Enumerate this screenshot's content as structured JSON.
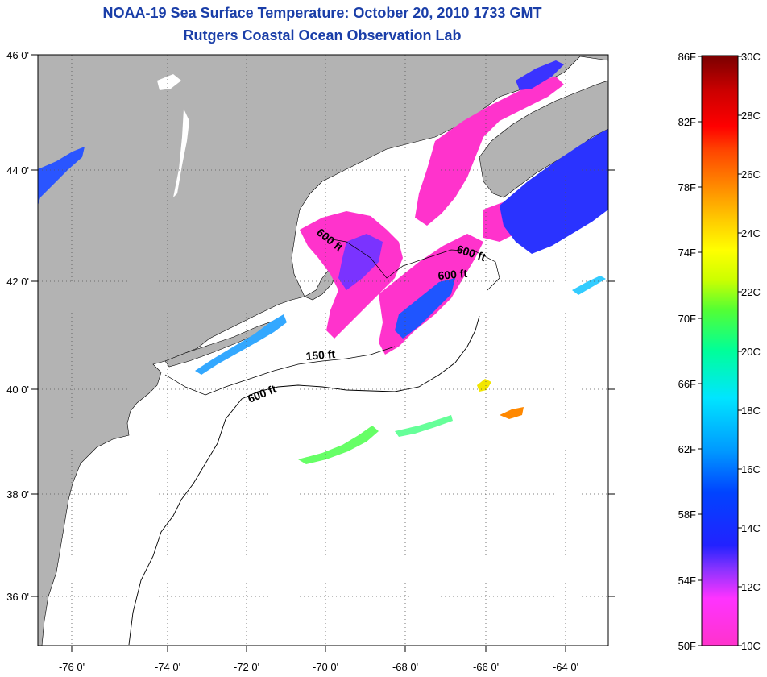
{
  "header": {
    "title": "NOAA-19 Sea Surface Temperature:  October 20, 2010 1733 GMT",
    "subtitle": "Rutgers Coastal Ocean Observation Lab"
  },
  "map": {
    "lon_labels": [
      "-76 0'",
      "-74 0'",
      "-72 0'",
      "-70 0'",
      "-68 0'",
      "-66 0'",
      "-64 0'"
    ],
    "lat_labels": [
      "46 0'",
      "44 0'",
      "42 0'",
      "40 0'",
      "38 0'",
      "36 0'"
    ],
    "isobath_labels": [
      "600 ft",
      "600 ft",
      "600 ft",
      "150 ft",
      "600 ft"
    ],
    "colors": {
      "land": "#b3b3b3",
      "water_cloud": "#ffffff",
      "coastline": "#000000"
    }
  },
  "colorbar": {
    "fahrenheit_labels": [
      "86F",
      "82F",
      "78F",
      "74F",
      "70F",
      "66F",
      "62F",
      "58F",
      "54F",
      "50F"
    ],
    "celsius_labels": [
      "30C",
      "28C",
      "26C",
      "24C",
      "22C",
      "20C",
      "18C",
      "16C",
      "14C",
      "12C",
      "10C"
    ],
    "range_c": [
      10,
      30
    ],
    "range_f": [
      50,
      86
    ],
    "gradient_colors": [
      "#ff33cc",
      "#ff33ff",
      "#8833ff",
      "#2222ff",
      "#0044ff",
      "#0099ff",
      "#00e5ff",
      "#00ff99",
      "#55ff33",
      "#ccff00",
      "#ffff00",
      "#ffcc00",
      "#ff8800",
      "#ff4400",
      "#ff0000",
      "#cc0000",
      "#7a0000"
    ]
  }
}
